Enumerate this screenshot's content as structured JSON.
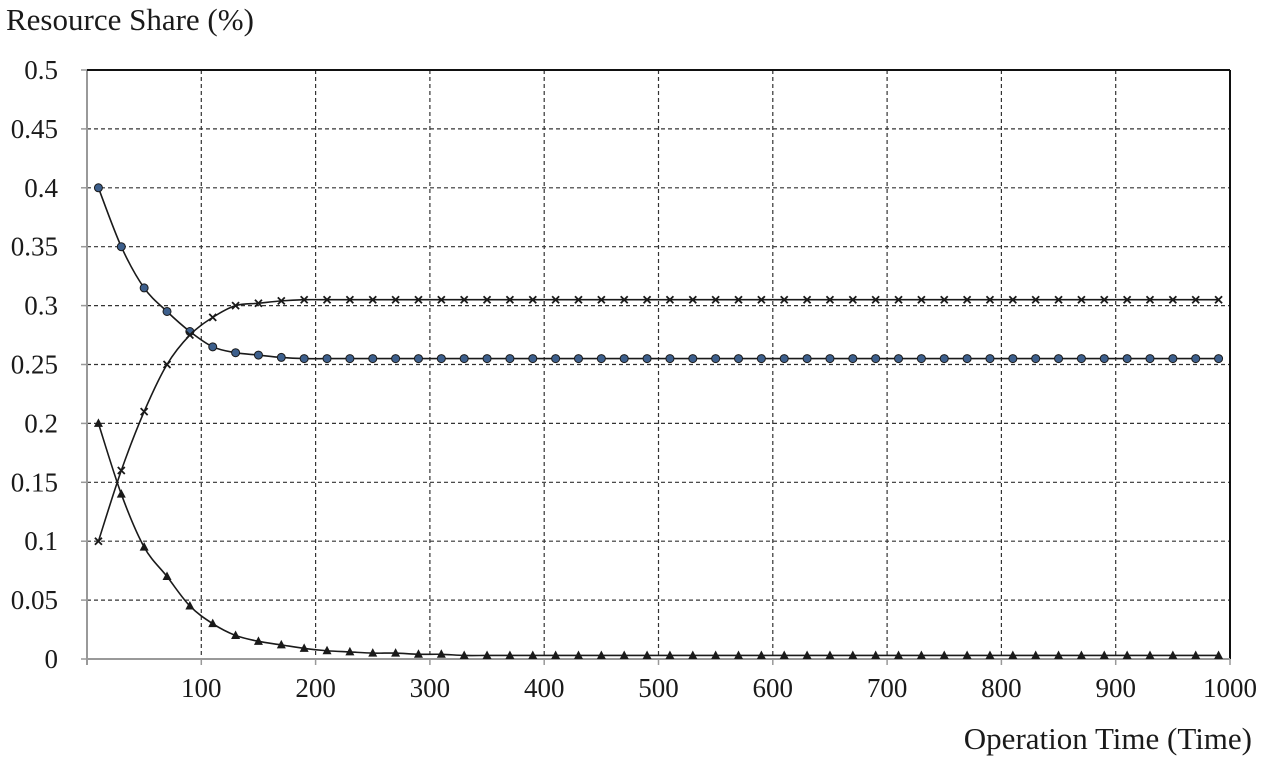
{
  "chart_data": {
    "type": "line",
    "title": "",
    "ylabel": "Resource Share (%)",
    "xlabel": "Operation Time (Time)",
    "xlim": [
      0,
      1000
    ],
    "ylim": [
      0,
      0.5
    ],
    "x_ticks": [
      100,
      200,
      300,
      400,
      500,
      600,
      700,
      800,
      900,
      1000
    ],
    "x_tick_labels": [
      "100",
      "200",
      "300",
      "400",
      "500",
      "600",
      "700",
      "800",
      "900",
      "1000"
    ],
    "y_ticks": [
      0,
      0.05,
      0.1,
      0.15,
      0.2,
      0.25,
      0.3,
      0.35,
      0.4,
      0.45,
      0.5
    ],
    "y_tick_labels": [
      "0",
      "0.05",
      "0.1",
      "0.15",
      "0.2",
      "0.25",
      "0.3",
      "0.35",
      "0.4",
      "0.45",
      "0.5"
    ],
    "grid": true,
    "legend": "none",
    "x": [
      10,
      30,
      50,
      70,
      90,
      110,
      130,
      150,
      170,
      190,
      210,
      230,
      250,
      270,
      290,
      310,
      330,
      350,
      370,
      390,
      410,
      430,
      450,
      470,
      490,
      510,
      530,
      550,
      570,
      590,
      610,
      630,
      650,
      670,
      690,
      710,
      730,
      750,
      770,
      790,
      810,
      830,
      850,
      870,
      890,
      910,
      930,
      950,
      970,
      990
    ],
    "series": [
      {
        "marker": "circle",
        "marker_color": "#3d5f8c",
        "values": [
          0.4,
          0.35,
          0.315,
          0.295,
          0.278,
          0.265,
          0.26,
          0.258,
          0.256,
          0.255,
          0.255,
          0.255,
          0.255,
          0.255,
          0.255,
          0.255,
          0.255,
          0.255,
          0.255,
          0.255,
          0.255,
          0.255,
          0.255,
          0.255,
          0.255,
          0.255,
          0.255,
          0.255,
          0.255,
          0.255,
          0.255,
          0.255,
          0.255,
          0.255,
          0.255,
          0.255,
          0.255,
          0.255,
          0.255,
          0.255,
          0.255,
          0.255,
          0.255,
          0.255,
          0.255,
          0.255,
          0.255,
          0.255,
          0.255,
          0.255
        ]
      },
      {
        "marker": "x",
        "marker_color": "#1a1a1a",
        "values": [
          0.1,
          0.16,
          0.21,
          0.25,
          0.275,
          0.29,
          0.3,
          0.302,
          0.304,
          0.305,
          0.305,
          0.305,
          0.305,
          0.305,
          0.305,
          0.305,
          0.305,
          0.305,
          0.305,
          0.305,
          0.305,
          0.305,
          0.305,
          0.305,
          0.305,
          0.305,
          0.305,
          0.305,
          0.305,
          0.305,
          0.305,
          0.305,
          0.305,
          0.305,
          0.305,
          0.305,
          0.305,
          0.305,
          0.305,
          0.305,
          0.305,
          0.305,
          0.305,
          0.305,
          0.305,
          0.305,
          0.305,
          0.305,
          0.305,
          0.305
        ]
      },
      {
        "marker": "triangle",
        "marker_color": "#1a1a1a",
        "values": [
          0.2,
          0.14,
          0.095,
          0.07,
          0.045,
          0.03,
          0.02,
          0.015,
          0.012,
          0.009,
          0.007,
          0.006,
          0.005,
          0.005,
          0.004,
          0.004,
          0.003,
          0.003,
          0.003,
          0.003,
          0.003,
          0.003,
          0.003,
          0.003,
          0.003,
          0.003,
          0.003,
          0.003,
          0.003,
          0.003,
          0.003,
          0.003,
          0.003,
          0.003,
          0.003,
          0.003,
          0.003,
          0.003,
          0.003,
          0.003,
          0.003,
          0.003,
          0.003,
          0.003,
          0.003,
          0.003,
          0.003,
          0.003,
          0.003,
          0.003
        ]
      }
    ]
  }
}
